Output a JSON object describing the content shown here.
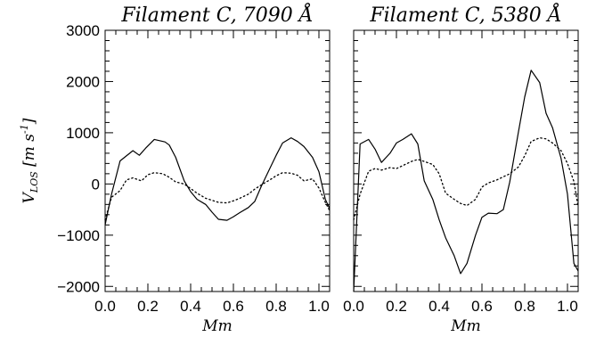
{
  "chart_data": [
    {
      "type": "line",
      "title": "Filament C, 7090 Å",
      "xlabel": "Mm",
      "ylabel": "V_LOS [m s^-1]",
      "ylabel_main": "V",
      "ylabel_sub": "LOS",
      "ylabel_units": "[m s",
      "ylabel_exp": "-1",
      "ylabel_close": "]",
      "xlim": [
        0,
        1.05
      ],
      "ylim": [
        -2100,
        3000
      ],
      "x_ticks": [
        "0.0",
        "0.2",
        "0.4",
        "0.6",
        "0.8",
        "1.0"
      ],
      "y_ticks": [
        "3000",
        "2000",
        "1000",
        "0",
        "-1000",
        "-2000"
      ],
      "series": [
        {
          "style": "solid",
          "x": [
            0.0,
            0.03,
            0.07,
            0.13,
            0.16,
            0.19,
            0.23,
            0.28,
            0.3,
            0.33,
            0.37,
            0.4,
            0.43,
            0.47,
            0.5,
            0.53,
            0.57,
            0.6,
            0.63,
            0.67,
            0.7,
            0.73,
            0.77,
            0.8,
            0.83,
            0.87,
            0.9,
            0.93,
            0.97,
            1.0,
            1.03,
            1.05
          ],
          "y": [
            -800,
            -200,
            450,
            650,
            560,
            700,
            870,
            820,
            760,
            520,
            60,
            -150,
            -300,
            -400,
            -550,
            -690,
            -710,
            -640,
            -560,
            -460,
            -340,
            -50,
            300,
            560,
            800,
            900,
            830,
            730,
            520,
            240,
            -300,
            -480
          ]
        },
        {
          "style": "dotted",
          "x": [
            0.0,
            0.03,
            0.07,
            0.1,
            0.13,
            0.17,
            0.2,
            0.23,
            0.27,
            0.3,
            0.33,
            0.37,
            0.4,
            0.43,
            0.47,
            0.5,
            0.53,
            0.57,
            0.6,
            0.63,
            0.67,
            0.7,
            0.73,
            0.77,
            0.8,
            0.83,
            0.87,
            0.9,
            0.93,
            0.97,
            1.0,
            1.03,
            1.05
          ],
          "y": [
            -700,
            -260,
            -130,
            80,
            120,
            60,
            180,
            220,
            200,
            130,
            40,
            0,
            -90,
            -180,
            -280,
            -320,
            -360,
            -370,
            -330,
            -280,
            -200,
            -100,
            -20,
            80,
            160,
            220,
            210,
            170,
            60,
            100,
            -80,
            -360,
            -520
          ]
        }
      ]
    },
    {
      "type": "line",
      "title": "Filament C, 5380 Å",
      "xlabel": "Mm",
      "xlim": [
        0,
        1.05
      ],
      "ylim": [
        -2100,
        3000
      ],
      "x_ticks": [
        "0.0",
        "0.2",
        "0.4",
        "0.6",
        "0.8",
        "1.0"
      ],
      "series": [
        {
          "style": "solid",
          "x": [
            0.0,
            0.03,
            0.07,
            0.1,
            0.13,
            0.17,
            0.2,
            0.23,
            0.27,
            0.3,
            0.33,
            0.37,
            0.4,
            0.43,
            0.47,
            0.5,
            0.53,
            0.57,
            0.6,
            0.63,
            0.67,
            0.7,
            0.73,
            0.77,
            0.8,
            0.83,
            0.87,
            0.9,
            0.93,
            0.97,
            1.0,
            1.03,
            1.05
          ],
          "y": [
            -2100,
            780,
            870,
            680,
            420,
            600,
            800,
            870,
            980,
            780,
            60,
            -300,
            -700,
            -1050,
            -1400,
            -1750,
            -1550,
            -1000,
            -650,
            -570,
            -580,
            -500,
            40,
            1000,
            1700,
            2220,
            1980,
            1380,
            1100,
            500,
            -200,
            -1550,
            -1700
          ]
        },
        {
          "style": "dotted",
          "x": [
            0.0,
            0.03,
            0.07,
            0.1,
            0.13,
            0.17,
            0.2,
            0.23,
            0.27,
            0.3,
            0.33,
            0.37,
            0.4,
            0.43,
            0.47,
            0.5,
            0.53,
            0.57,
            0.6,
            0.63,
            0.67,
            0.7,
            0.73,
            0.77,
            0.8,
            0.83,
            0.87,
            0.9,
            0.93,
            0.97,
            1.0,
            1.03,
            1.05
          ],
          "y": [
            -700,
            -200,
            250,
            300,
            270,
            320,
            300,
            360,
            440,
            480,
            440,
            380,
            200,
            -180,
            -300,
            -380,
            -420,
            -300,
            -60,
            20,
            80,
            140,
            200,
            330,
            550,
            830,
            900,
            880,
            800,
            650,
            400,
            50,
            -450
          ]
        }
      ]
    }
  ]
}
